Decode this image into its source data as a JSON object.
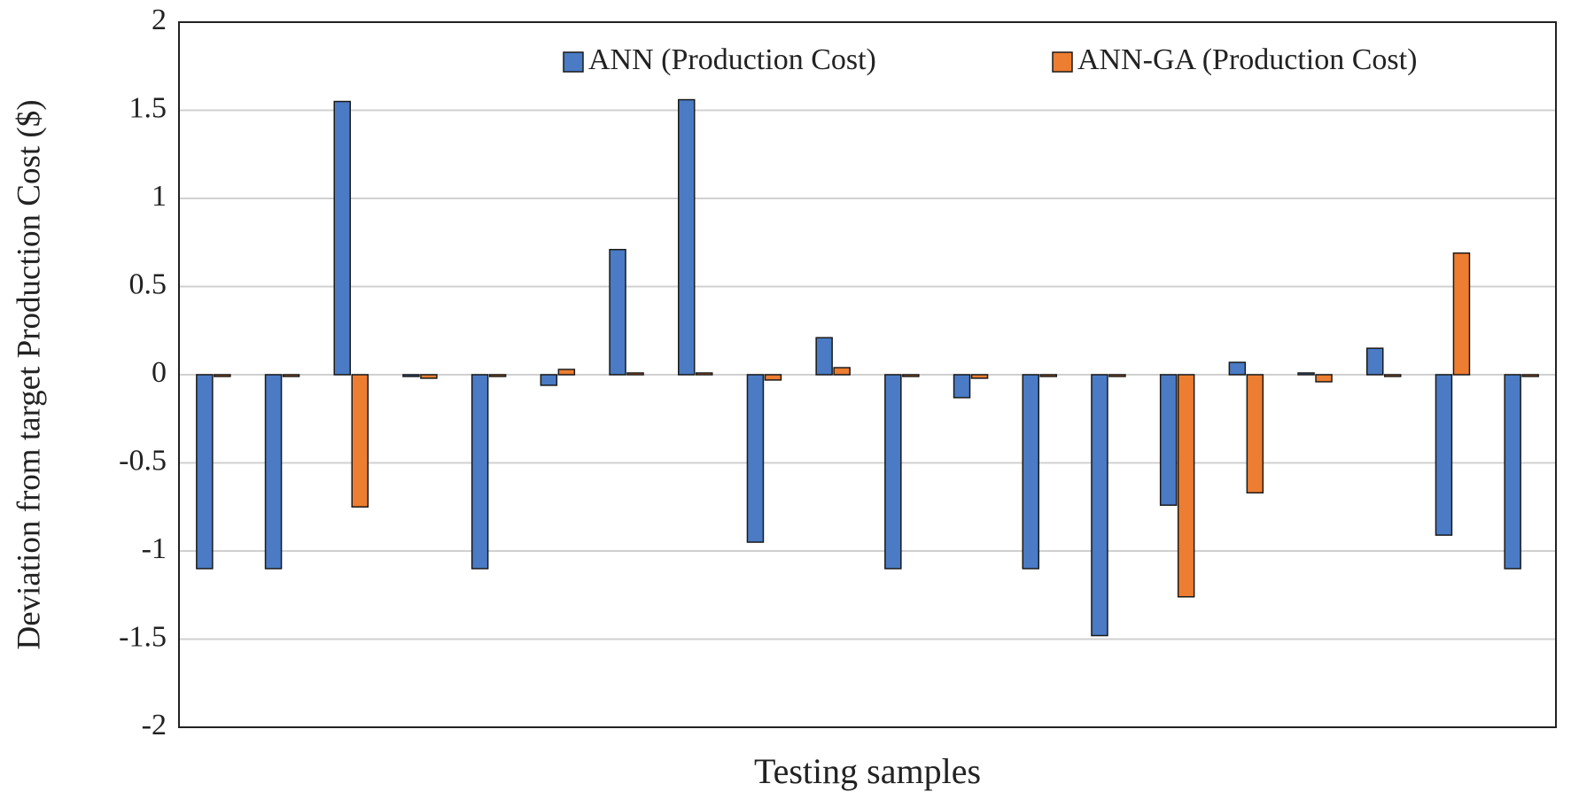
{
  "chart_data": {
    "type": "bar",
    "y_label": "Deviation from target  Production Cost ($)",
    "x_label": "Testing samples",
    "categories": [
      null,
      null,
      null,
      null,
      null,
      null,
      null,
      null,
      null,
      null,
      null,
      null,
      null,
      null,
      null,
      null,
      null,
      null,
      null,
      null
    ],
    "series": [
      {
        "name": "ANN (Production Cost)",
        "color": "#4a7bc4",
        "values": [
          -1.1,
          -1.1,
          1.55,
          -0.01,
          -1.1,
          -0.06,
          0.71,
          1.56,
          -0.95,
          0.21,
          -1.1,
          -0.13,
          -1.1,
          -1.48,
          -0.74,
          0.07,
          0.01,
          0.15,
          -0.91,
          -1.1
        ]
      },
      {
        "name": "ANN-GA (Production Cost)",
        "color": "#ed7d31",
        "values": [
          -0.01,
          -0.01,
          -0.75,
          -0.02,
          -0.01,
          0.03,
          0.01,
          0.01,
          -0.03,
          0.04,
          -0.01,
          -0.02,
          -0.01,
          -0.01,
          -1.26,
          -0.67,
          -0.04,
          -0.01,
          0.69,
          -0.01
        ]
      }
    ],
    "ylim": [
      -2,
      2
    ],
    "yticks": [
      -2,
      -1.5,
      -1,
      -0.5,
      0,
      0.5,
      1,
      1.5,
      2
    ],
    "grid": true,
    "legend": "top-right"
  }
}
